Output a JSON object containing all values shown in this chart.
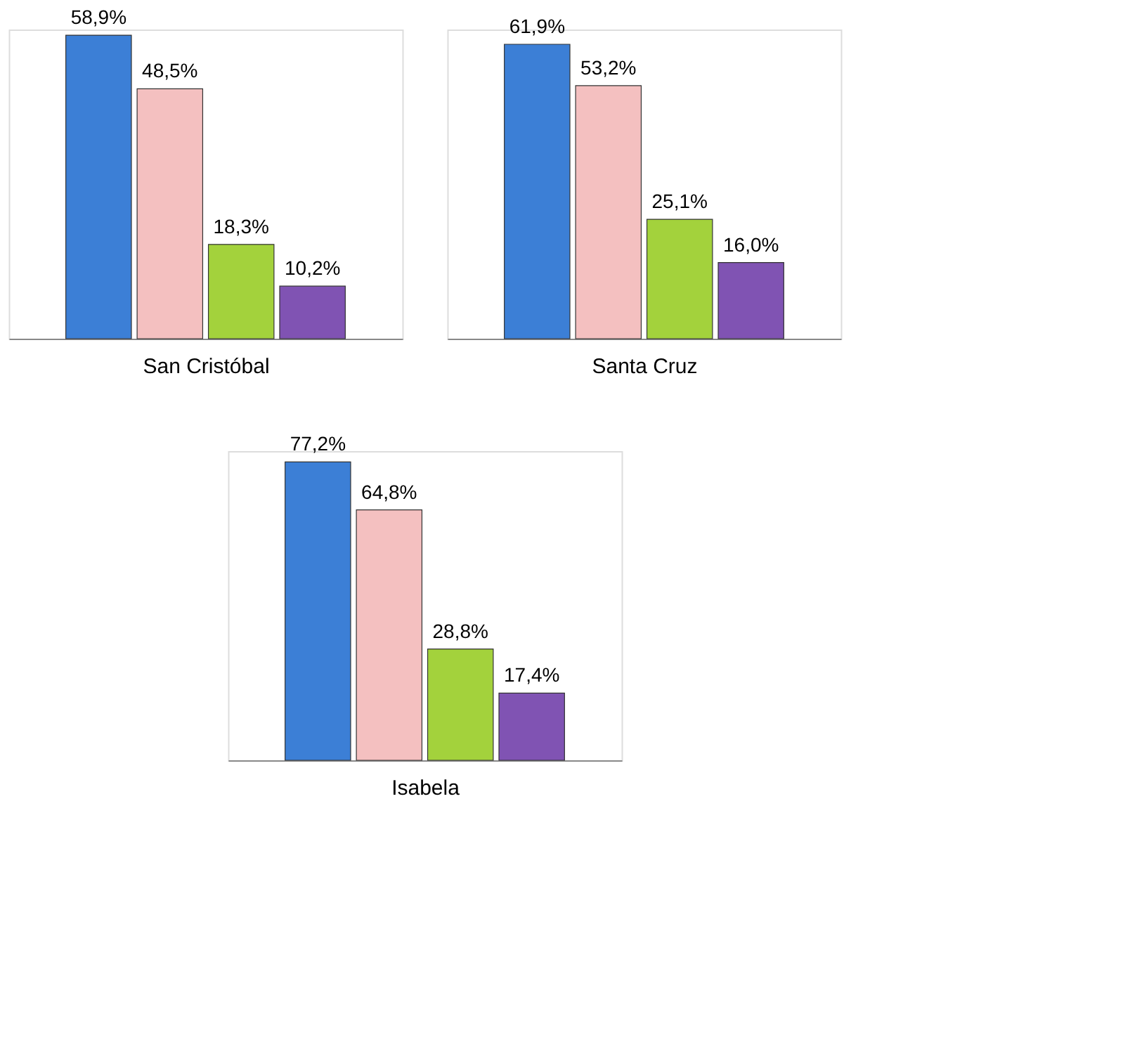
{
  "chart_data": [
    {
      "type": "bar",
      "xlabel": "San Cristóbal",
      "categories": [
        null,
        null,
        null,
        null
      ],
      "values": [
        58.9,
        48.5,
        18.3,
        10.2
      ],
      "colors": [
        "#3c7fd6",
        "#f4c0c0",
        "#a3d23c",
        "#8053b3"
      ],
      "value_labels": [
        "58,9%",
        "48,5%",
        "18,3%",
        "10,2%"
      ]
    },
    {
      "type": "bar",
      "xlabel": "Santa Cruz",
      "categories": [
        null,
        null,
        null,
        null
      ],
      "values": [
        61.9,
        53.2,
        25.1,
        16.0
      ],
      "colors": [
        "#3c7fd6",
        "#f4c0c0",
        "#a3d23c",
        "#8053b3"
      ],
      "value_labels": [
        "61,9%",
        "53,2%",
        "25,1%",
        "16,0%"
      ]
    },
    {
      "type": "bar",
      "xlabel": "Isabela",
      "categories": [
        null,
        null,
        null,
        null
      ],
      "values": [
        77.2,
        64.8,
        28.8,
        17.4
      ],
      "colors": [
        "#3c7fd6",
        "#f4c0c0",
        "#a3d23c",
        "#8053b3"
      ],
      "value_labels": [
        "77,2%",
        "64,8%",
        "28,8%",
        "17,4%"
      ]
    }
  ]
}
